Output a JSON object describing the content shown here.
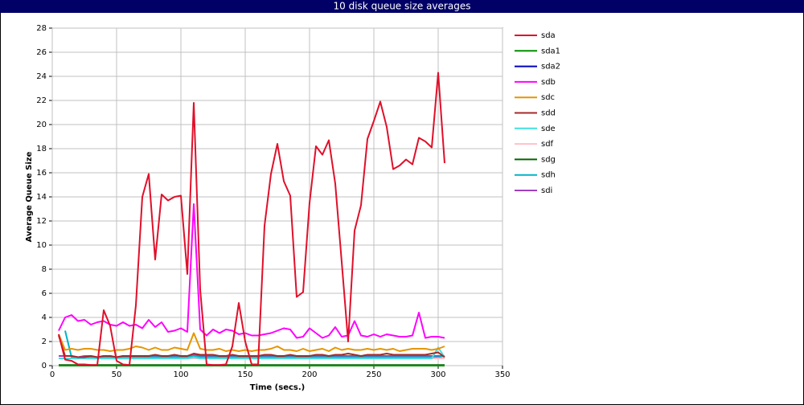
{
  "chart_data": {
    "type": "line",
    "title": "10 disk queue size averages",
    "x_label": "Time (secs.)",
    "y_label": "Average Queue Size",
    "xlim": [
      0,
      350
    ],
    "xticks": [
      0,
      50,
      100,
      150,
      200,
      250,
      300,
      350
    ],
    "ylim": [
      0,
      28
    ],
    "yticks": [
      0,
      2,
      4,
      6,
      8,
      10,
      12,
      14,
      16,
      18,
      20,
      22,
      24,
      26,
      28
    ],
    "grid": true,
    "legend": "right",
    "x": [
      5,
      10,
      15,
      20,
      25,
      30,
      35,
      40,
      45,
      50,
      55,
      60,
      65,
      70,
      75,
      80,
      85,
      90,
      95,
      100,
      105,
      110,
      115,
      120,
      125,
      130,
      135,
      140,
      145,
      150,
      155,
      160,
      165,
      170,
      175,
      180,
      185,
      190,
      195,
      200,
      205,
      210,
      215,
      220,
      225,
      230,
      235,
      240,
      245,
      250,
      255,
      260,
      265,
      270,
      275,
      280,
      285,
      290,
      295,
      300,
      305
    ],
    "series": [
      {
        "name": "sda",
        "color": "#e0102a",
        "values": [
          2.6,
          0.5,
          0.4,
          0.1,
          0.1,
          0.05,
          0.05,
          4.6,
          3.3,
          0.4,
          0.1,
          0.05,
          5.0,
          14.0,
          15.9,
          8.8,
          14.2,
          13.7,
          14.0,
          14.1,
          7.6,
          21.8,
          6.3,
          0.1,
          0.05,
          0.05,
          0.1,
          1.6,
          5.2,
          2.0,
          0.1,
          0.1,
          11.6,
          15.9,
          18.4,
          15.3,
          14.1,
          5.7,
          6.1,
          13.5,
          18.2,
          17.5,
          18.7,
          15.1,
          8.6,
          2.0,
          11.2,
          13.3,
          18.8,
          20.3,
          21.9,
          19.8,
          16.3,
          16.6,
          17.1,
          16.7,
          18.9,
          18.6,
          18.1,
          24.3,
          16.8
        ]
      },
      {
        "name": "sda1",
        "color": "#009000",
        "values": [
          0,
          0,
          0,
          0,
          0,
          0,
          0,
          0,
          0,
          0,
          0,
          0,
          0,
          0,
          0,
          0,
          0,
          0,
          0,
          0,
          0,
          0,
          0,
          0,
          0,
          0,
          0,
          0,
          0,
          0,
          0,
          0,
          0,
          0,
          0,
          0,
          0,
          0,
          0,
          0,
          0,
          0,
          0,
          0,
          0,
          0,
          0,
          0,
          0,
          0,
          0,
          0,
          0,
          0,
          0,
          0,
          0,
          0,
          0,
          0,
          0
        ]
      },
      {
        "name": "sda2",
        "color": "#0000c0",
        "values": [
          0,
          0,
          0,
          0,
          0,
          0,
          0,
          0,
          0,
          0,
          0,
          0,
          0,
          0,
          0,
          0,
          0,
          0,
          0,
          0,
          0,
          0,
          0,
          0,
          0,
          0,
          0,
          0,
          0,
          0,
          0,
          0,
          0,
          0,
          0,
          0,
          0,
          0,
          0,
          0,
          0,
          0,
          0,
          0,
          0,
          0,
          0,
          0,
          0,
          0,
          0,
          0,
          0,
          0,
          0,
          0,
          0,
          0,
          0,
          0,
          0
        ]
      },
      {
        "name": "sdb",
        "color": "#ff00ff",
        "values": [
          2.9,
          4.0,
          4.2,
          3.7,
          3.8,
          3.4,
          3.6,
          3.7,
          3.4,
          3.3,
          3.6,
          3.3,
          3.4,
          3.1,
          3.8,
          3.2,
          3.6,
          2.8,
          2.9,
          3.1,
          2.8,
          13.4,
          3.0,
          2.5,
          3.0,
          2.7,
          3.0,
          2.9,
          2.6,
          2.7,
          2.5,
          2.5,
          2.6,
          2.7,
          2.9,
          3.1,
          3.0,
          2.3,
          2.4,
          3.1,
          2.7,
          2.3,
          2.5,
          3.2,
          2.4,
          2.5,
          3.7,
          2.5,
          2.4,
          2.6,
          2.4,
          2.6,
          2.5,
          2.4,
          2.4,
          2.5,
          4.4,
          2.3,
          2.4,
          2.4,
          2.3
        ]
      },
      {
        "name": "sdc",
        "color": "#e69500",
        "values": [
          2.6,
          1.3,
          1.4,
          1.3,
          1.4,
          1.4,
          1.3,
          1.3,
          1.2,
          1.3,
          1.3,
          1.4,
          1.6,
          1.5,
          1.3,
          1.5,
          1.3,
          1.3,
          1.5,
          1.4,
          1.3,
          2.7,
          1.4,
          1.3,
          1.3,
          1.4,
          1.2,
          1.3,
          1.2,
          1.3,
          1.2,
          1.3,
          1.3,
          1.4,
          1.6,
          1.3,
          1.3,
          1.2,
          1.4,
          1.2,
          1.3,
          1.4,
          1.2,
          1.5,
          1.3,
          1.4,
          1.3,
          1.3,
          1.4,
          1.3,
          1.4,
          1.3,
          1.4,
          1.2,
          1.3,
          1.4,
          1.4,
          1.4,
          1.3,
          1.4,
          1.6
        ]
      },
      {
        "name": "sdd",
        "color": "#a52a2a",
        "values": [
          2.5,
          0.8,
          0.8,
          0.7,
          0.7,
          0.8,
          0.7,
          0.8,
          0.8,
          0.7,
          0.8,
          0.8,
          0.8,
          0.8,
          0.8,
          0.9,
          0.8,
          0.8,
          0.9,
          0.8,
          0.8,
          1.0,
          0.9,
          0.9,
          0.9,
          0.8,
          0.8,
          0.9,
          0.8,
          0.8,
          0.8,
          0.8,
          0.9,
          0.9,
          0.8,
          0.8,
          0.9,
          0.8,
          0.8,
          0.8,
          0.9,
          0.9,
          0.8,
          0.9,
          0.9,
          1.0,
          0.9,
          0.8,
          0.9,
          0.9,
          0.9,
          1.0,
          0.9,
          0.9,
          0.9,
          0.9,
          0.9,
          0.9,
          1.0,
          1.1,
          0.7
        ]
      },
      {
        "name": "sde",
        "color": "#40e0e0",
        "values": [
          0.6,
          0.6,
          0.6,
          0.6,
          0.6,
          0.6,
          0.6,
          0.6,
          0.6,
          0.6,
          0.6,
          0.6,
          0.6,
          0.6,
          0.6,
          0.6,
          0.6,
          0.6,
          0.6,
          0.6,
          0.6,
          0.7,
          0.6,
          0.6,
          0.6,
          0.6,
          0.6,
          0.6,
          0.6,
          0.6,
          0.6,
          0.6,
          0.6,
          0.6,
          0.6,
          0.6,
          0.6,
          0.6,
          0.6,
          0.6,
          0.6,
          0.6,
          0.6,
          0.6,
          0.6,
          0.6,
          0.6,
          0.6,
          0.6,
          0.6,
          0.6,
          0.6,
          0.6,
          0.6,
          0.6,
          0.6,
          0.6,
          0.6,
          0.6,
          1.5,
          0.7
        ]
      },
      {
        "name": "sdf",
        "color": "#ffc0cb",
        "values": [
          0.6,
          0.6,
          0.6,
          0.6,
          0.6,
          0.6,
          0.6,
          0.6,
          0.6,
          0.6,
          0.6,
          0.6,
          0.6,
          0.6,
          0.6,
          0.6,
          0.6,
          0.6,
          0.6,
          0.6,
          0.6,
          0.6,
          0.6,
          0.6,
          0.6,
          0.6,
          0.6,
          0.6,
          0.6,
          0.6,
          0.6,
          0.6,
          0.6,
          0.6,
          0.6,
          0.6,
          0.6,
          0.6,
          0.6,
          0.6,
          0.6,
          0.6,
          0.6,
          0.6,
          0.6,
          0.6,
          0.6,
          0.6,
          0.6,
          0.6,
          0.6,
          0.6,
          0.6,
          0.6,
          0.6,
          0.6,
          0.6,
          0.6,
          0.6,
          0.6,
          0.6
        ]
      },
      {
        "name": "sdg",
        "color": "#006400",
        "values": [
          0.05,
          0.05,
          0.05,
          0.05,
          0.05,
          0.05,
          0.05,
          0.05,
          0.05,
          0.05,
          0.05,
          0.05,
          0.05,
          0.05,
          0.05,
          0.05,
          0.05,
          0.05,
          0.05,
          0.05,
          0.05,
          0.05,
          0.05,
          0.05,
          0.05,
          0.05,
          0.05,
          0.05,
          0.05,
          0.05,
          0.05,
          0.05,
          0.05,
          0.05,
          0.05,
          0.05,
          0.05,
          0.05,
          0.05,
          0.05,
          0.05,
          0.05,
          0.05,
          0.05,
          0.05,
          0.05,
          0.05,
          0.05,
          0.05,
          0.05,
          0.05,
          0.05,
          0.05,
          0.05,
          0.05,
          0.05,
          0.05,
          0.05,
          0.05,
          0.05,
          0.05
        ]
      },
      {
        "name": "sdh",
        "color": "#00b4c8",
        "values": [
          null,
          2.9,
          0.7,
          0.7,
          0.7,
          0.7,
          0.7,
          0.7,
          0.7,
          0.7,
          0.7,
          0.7,
          0.7,
          0.7,
          0.7,
          0.7,
          0.7,
          0.7,
          0.7,
          0.7,
          0.7,
          0.8,
          0.7,
          0.7,
          0.7,
          0.7,
          0.7,
          0.7,
          0.7,
          0.7,
          0.7,
          0.7,
          0.7,
          0.7,
          0.7,
          0.7,
          0.7,
          0.7,
          0.7,
          0.7,
          0.7,
          0.7,
          0.7,
          0.7,
          0.7,
          0.7,
          0.7,
          0.7,
          0.7,
          0.7,
          0.7,
          0.7,
          0.7,
          0.7,
          0.7,
          0.7,
          0.7,
          0.7,
          0.7,
          0.7,
          0.8
        ]
      },
      {
        "name": "sdi",
        "color": "#a040c0",
        "values": [
          0.8,
          0.8,
          0.8,
          0.7,
          0.8,
          0.8,
          0.7,
          0.8,
          0.8,
          0.7,
          0.8,
          0.8,
          0.8,
          0.8,
          0.8,
          0.8,
          0.8,
          0.8,
          0.8,
          0.8,
          0.8,
          0.9,
          0.8,
          0.8,
          0.8,
          0.8,
          0.8,
          0.8,
          0.8,
          0.8,
          0.8,
          0.8,
          0.8,
          0.8,
          0.8,
          0.8,
          0.8,
          0.8,
          0.8,
          0.8,
          0.8,
          0.8,
          0.8,
          0.8,
          0.8,
          0.8,
          0.8,
          0.8,
          0.8,
          0.8,
          0.8,
          0.8,
          0.8,
          0.8,
          0.8,
          0.8,
          0.8,
          0.8,
          0.8,
          0.8,
          0.8
        ]
      }
    ]
  }
}
